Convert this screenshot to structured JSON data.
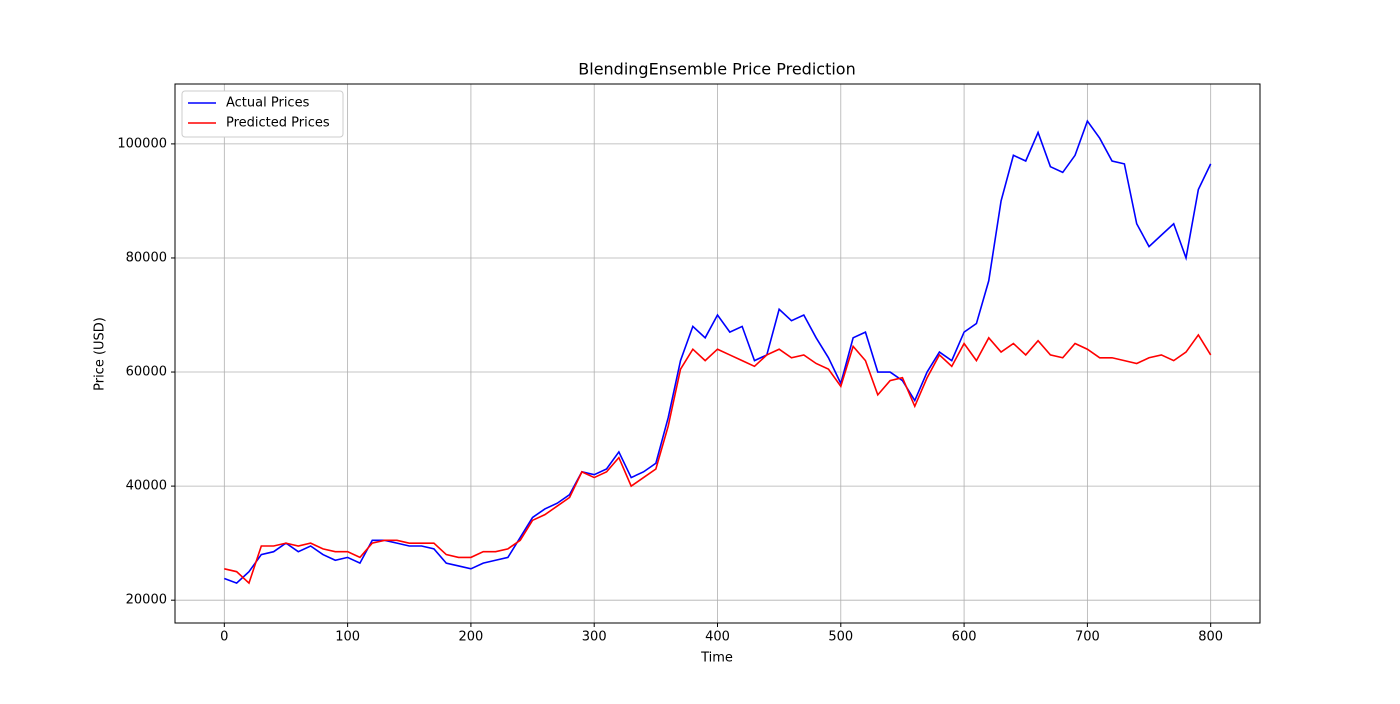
{
  "chart_data": {
    "type": "line",
    "title": "BlendingEnsemble Price Prediction",
    "x_label": "Time",
    "y_label": "Price (USD)",
    "x": [
      0,
      10,
      20,
      30,
      40,
      50,
      60,
      70,
      80,
      90,
      100,
      110,
      120,
      130,
      140,
      150,
      160,
      170,
      180,
      190,
      200,
      210,
      220,
      230,
      240,
      250,
      260,
      270,
      280,
      290,
      300,
      310,
      320,
      330,
      340,
      350,
      360,
      370,
      380,
      390,
      400,
      410,
      420,
      430,
      440,
      450,
      460,
      470,
      480,
      490,
      500,
      510,
      520,
      530,
      540,
      550,
      560,
      570,
      580,
      590,
      600,
      610,
      620,
      630,
      640,
      650,
      660,
      670,
      680,
      690,
      700,
      710,
      720,
      730,
      740,
      750,
      760,
      770,
      780,
      790,
      800
    ],
    "series": [
      {
        "name": "Actual Prices",
        "color": "#0000ff",
        "values": [
          23800,
          23000,
          25000,
          28000,
          28500,
          30000,
          28500,
          29500,
          28000,
          27000,
          27500,
          26500,
          30500,
          30500,
          30000,
          29500,
          29500,
          29000,
          26500,
          26000,
          25500,
          26500,
          27000,
          27500,
          31000,
          34500,
          36000,
          37000,
          38500,
          42500,
          42000,
          43000,
          46000,
          41500,
          42500,
          44000,
          52000,
          62000,
          68000,
          66000,
          70000,
          67000,
          68000,
          62000,
          63000,
          71000,
          69000,
          70000,
          66000,
          62500,
          58000,
          66000,
          67000,
          60000,
          60000,
          58500,
          55000,
          60000,
          63500,
          62000,
          67000,
          68500,
          76000,
          90000,
          98000,
          97000,
          102000,
          96000,
          95000,
          98000,
          104000,
          101000,
          97000,
          96500,
          86000,
          82000,
          84000,
          86000,
          80000,
          92000,
          96500
        ]
      },
      {
        "name": "Predicted Prices",
        "color": "#ff0000",
        "values": [
          25500,
          25000,
          23000,
          29500,
          29500,
          30000,
          29500,
          30000,
          29000,
          28500,
          28500,
          27500,
          30000,
          30500,
          30500,
          30000,
          30000,
          30000,
          28000,
          27500,
          27500,
          28500,
          28500,
          29000,
          30500,
          34000,
          35000,
          36500,
          38000,
          42500,
          41500,
          42500,
          45000,
          40000,
          41500,
          43000,
          50500,
          60500,
          64000,
          62000,
          64000,
          63000,
          62000,
          61000,
          63000,
          64000,
          62500,
          63000,
          61500,
          60500,
          57500,
          64500,
          62000,
          56000,
          58500,
          59000,
          54000,
          59000,
          63000,
          61000,
          65000,
          62000,
          66000,
          63500,
          65000,
          63000,
          65500,
          63000,
          62500,
          65000,
          64000,
          62500,
          62500,
          62000,
          61500,
          62500,
          63000,
          62000,
          63500,
          66500,
          63000
        ]
      }
    ],
    "xlim": [
      -40,
      840
    ],
    "xticks": [
      0,
      100,
      200,
      300,
      400,
      500,
      600,
      700,
      800
    ],
    "ylim": [
      16000,
      110500
    ],
    "yticks": [
      20000,
      40000,
      60000,
      80000,
      100000
    ],
    "grid": true,
    "legend": "upper-left"
  }
}
